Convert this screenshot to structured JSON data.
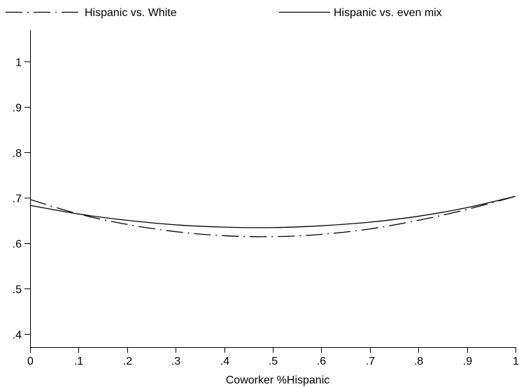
{
  "chart_data": {
    "type": "line",
    "title": "",
    "xlabel": "Coworker %Hispanic",
    "ylabel": "",
    "xlim": [
      0,
      1
    ],
    "ylim": [
      0.37,
      1.07
    ],
    "x_ticks": [
      0,
      0.1,
      0.2,
      0.3,
      0.4,
      0.5,
      0.6,
      0.7,
      0.8,
      0.9,
      1
    ],
    "x_tick_labels": [
      "0",
      ".1",
      ".2",
      ".3",
      ".4",
      ".5",
      ".6",
      ".7",
      ".8",
      ".9",
      "1"
    ],
    "y_ticks": [
      0.4,
      0.5,
      0.6,
      0.7,
      0.8,
      0.9,
      1
    ],
    "y_tick_labels": [
      ".4",
      ".5",
      ".6",
      ".7",
      ".8",
      ".9",
      "1"
    ],
    "grid": false,
    "legend_position": "top",
    "x": [
      0,
      0.1,
      0.2,
      0.3,
      0.4,
      0.5,
      0.6,
      0.7,
      0.8,
      0.9,
      1
    ],
    "series": [
      {
        "name": "Hispanic vs. White",
        "style": "dash-dot",
        "color": "#000000",
        "values": [
          0.696,
          0.664,
          0.641,
          0.625,
          0.616,
          0.614,
          0.619,
          0.631,
          0.65,
          0.674,
          0.703
        ]
      },
      {
        "name": "Hispanic vs. even mix",
        "style": "solid",
        "color": "#000000",
        "values": [
          0.683,
          0.664,
          0.65,
          0.64,
          0.635,
          0.634,
          0.638,
          0.646,
          0.659,
          0.678,
          0.703
        ]
      }
    ]
  }
}
